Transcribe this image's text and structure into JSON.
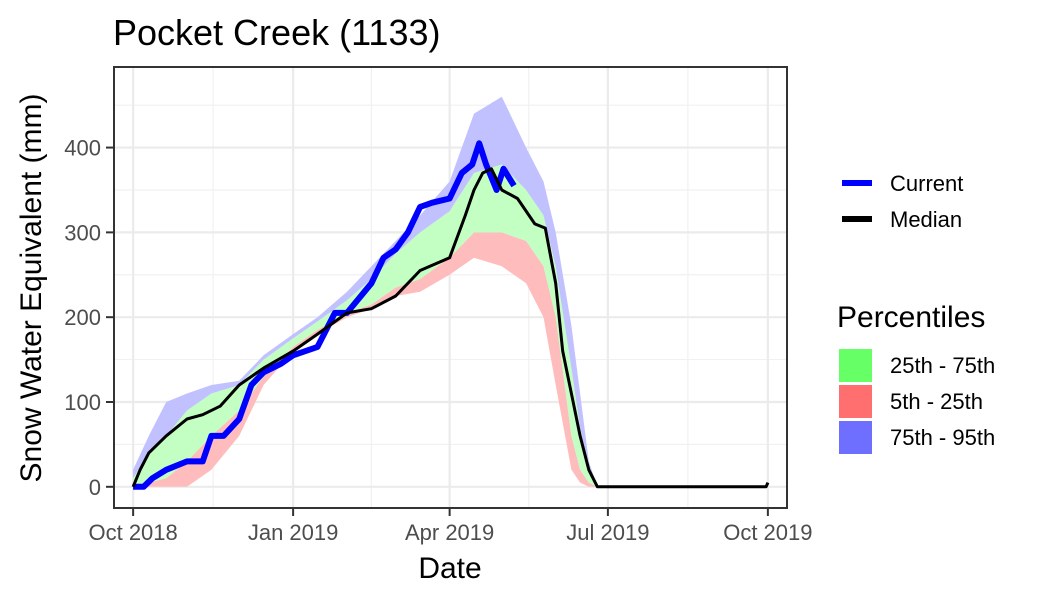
{
  "chart_data": {
    "type": "area",
    "title": "Pocket Creek (1133)",
    "xlabel": "Date",
    "ylabel": "Snow Water Equivalent (mm)",
    "ylim": [
      -25,
      495
    ],
    "xlim": [
      "2018-09-20",
      "2019-10-12"
    ],
    "grid": true,
    "x_ticks": [
      {
        "date": "2018-10-01",
        "label": "Oct 2018"
      },
      {
        "date": "2019-01-01",
        "label": "Jan 2019"
      },
      {
        "date": "2019-04-01",
        "label": "Apr 2019"
      },
      {
        "date": "2019-07-01",
        "label": "Jul 2019"
      },
      {
        "date": "2019-10-01",
        "label": "Oct 2019"
      }
    ],
    "y_ticks": [
      0,
      100,
      200,
      300,
      400
    ],
    "legend_position": "right",
    "legend_lines_title": "",
    "legend_lines": [
      {
        "name": "Current",
        "color": "#0000ff"
      },
      {
        "name": "Median",
        "color": "#000000"
      }
    ],
    "legend_bands_title": "Percentiles",
    "legend_bands": [
      {
        "name": "25th - 75th",
        "color": "#66ff66"
      },
      {
        "name": "5th - 25th",
        "color": "#ff6f6f"
      },
      {
        "name": "75th - 95th",
        "color": "#6f6fff"
      }
    ],
    "band_colors": {
      "p5_p25": "#ffbcbc",
      "p25_p75": "#c3ffc3",
      "p75_p95": "#c1c1ff"
    },
    "band_dates": [
      "2018-10-01",
      "2018-10-10",
      "2018-10-20",
      "2018-11-01",
      "2018-11-15",
      "2018-12-01",
      "2018-12-15",
      "2019-01-01",
      "2019-01-15",
      "2019-02-01",
      "2019-02-15",
      "2019-03-01",
      "2019-03-15",
      "2019-04-01",
      "2019-04-15",
      "2019-05-01",
      "2019-05-15",
      "2019-05-25",
      "2019-06-01",
      "2019-06-10",
      "2019-06-15",
      "2019-06-20",
      "2019-06-25",
      "2019-07-01",
      "2019-09-30"
    ],
    "p5": [
      0,
      0,
      0,
      0,
      20,
      60,
      120,
      160,
      180,
      200,
      210,
      225,
      230,
      250,
      270,
      260,
      240,
      200,
      120,
      20,
      5,
      0,
      0,
      0,
      0
    ],
    "p25": [
      0,
      5,
      10,
      30,
      60,
      90,
      130,
      165,
      185,
      205,
      215,
      235,
      245,
      270,
      300,
      300,
      290,
      260,
      200,
      60,
      20,
      5,
      0,
      0,
      0
    ],
    "p75": [
      10,
      40,
      60,
      90,
      110,
      120,
      150,
      175,
      195,
      220,
      245,
      275,
      300,
      325,
      370,
      380,
      350,
      320,
      260,
      140,
      70,
      20,
      0,
      0,
      0
    ],
    "p95": [
      20,
      60,
      100,
      110,
      120,
      125,
      155,
      180,
      200,
      230,
      260,
      290,
      320,
      360,
      440,
      460,
      400,
      360,
      300,
      190,
      110,
      30,
      0,
      0,
      0
    ],
    "series": [
      {
        "name": "Current",
        "color": "#0000ff",
        "dates": [
          "2018-10-01",
          "2018-10-07",
          "2018-10-12",
          "2018-10-20",
          "2018-11-01",
          "2018-11-10",
          "2018-11-15",
          "2018-11-22",
          "2018-12-01",
          "2018-12-08",
          "2018-12-15",
          "2018-12-25",
          "2019-01-01",
          "2019-01-15",
          "2019-01-25",
          "2019-02-01",
          "2019-02-15",
          "2019-02-22",
          "2019-03-01",
          "2019-03-08",
          "2019-03-15",
          "2019-03-22",
          "2019-04-01",
          "2019-04-08",
          "2019-04-14",
          "2019-04-18",
          "2019-04-22",
          "2019-04-28",
          "2019-05-02",
          "2019-05-08"
        ],
        "values": [
          0,
          0,
          10,
          20,
          30,
          30,
          60,
          60,
          80,
          120,
          135,
          145,
          155,
          165,
          205,
          205,
          240,
          270,
          280,
          300,
          330,
          335,
          340,
          370,
          380,
          405,
          380,
          350,
          375,
          355
        ]
      },
      {
        "name": "Median",
        "color": "#000000",
        "dates": [
          "2018-10-01",
          "2018-10-05",
          "2018-10-10",
          "2018-10-20",
          "2018-11-01",
          "2018-11-10",
          "2018-11-20",
          "2018-12-01",
          "2018-12-15",
          "2019-01-01",
          "2019-01-15",
          "2019-02-01",
          "2019-02-15",
          "2019-03-01",
          "2019-03-15",
          "2019-04-01",
          "2019-04-10",
          "2019-04-15",
          "2019-04-20",
          "2019-04-25",
          "2019-05-01",
          "2019-05-10",
          "2019-05-20",
          "2019-05-26",
          "2019-06-01",
          "2019-06-05",
          "2019-06-10",
          "2019-06-15",
          "2019-06-20",
          "2019-06-25",
          "2019-07-01",
          "2019-09-30",
          "2019-10-01"
        ],
        "values": [
          0,
          20,
          40,
          60,
          80,
          85,
          95,
          120,
          140,
          160,
          180,
          205,
          210,
          225,
          255,
          270,
          320,
          350,
          370,
          375,
          350,
          340,
          310,
          305,
          240,
          160,
          110,
          60,
          20,
          0,
          0,
          0,
          5
        ]
      }
    ]
  }
}
